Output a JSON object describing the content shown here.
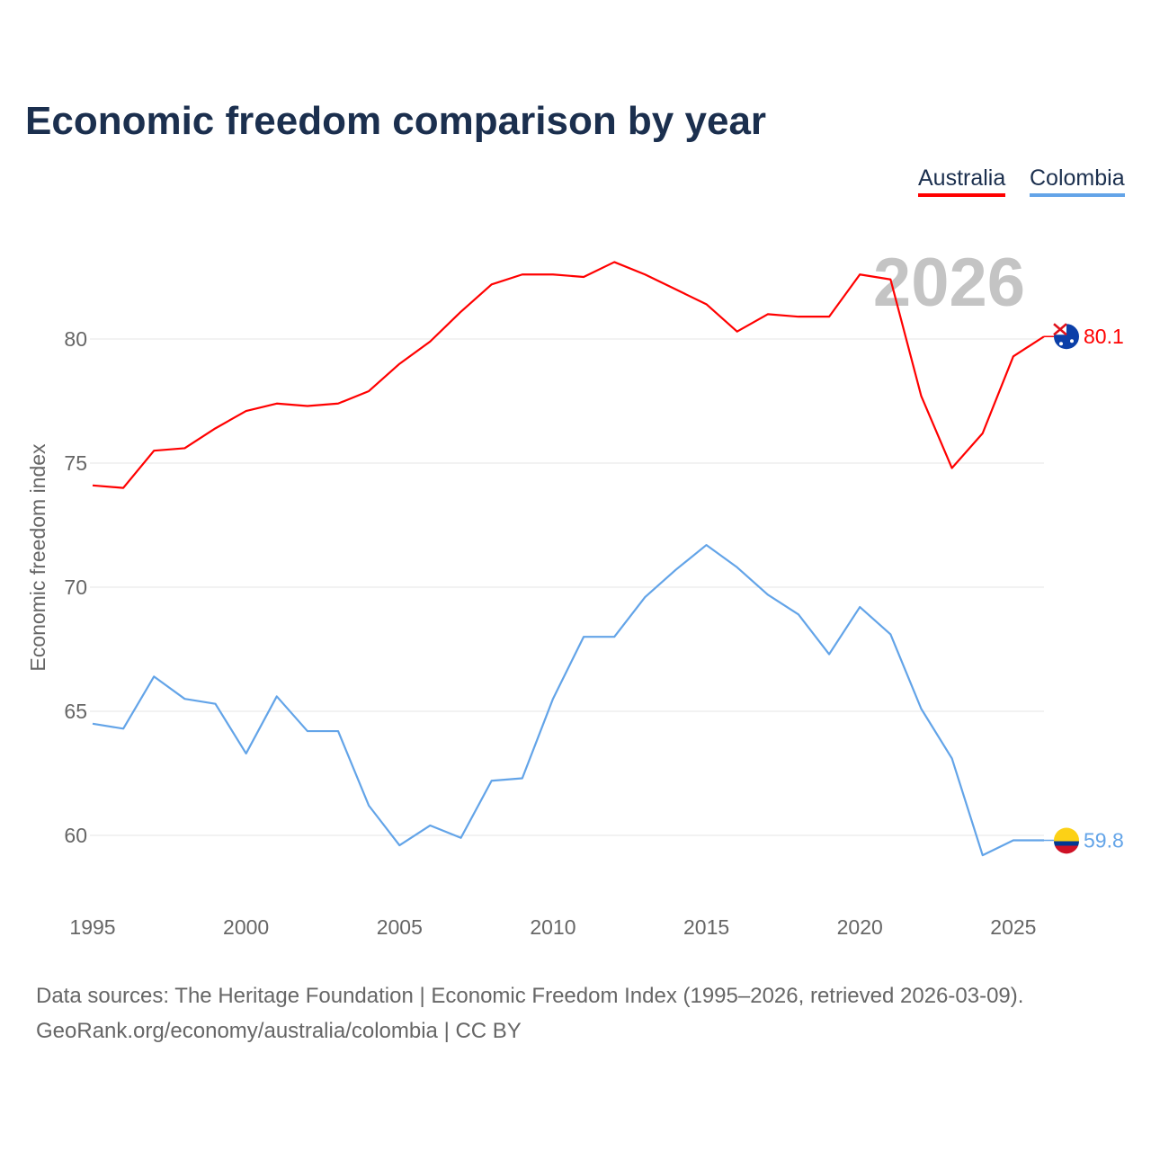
{
  "chart_data": {
    "type": "line",
    "title": "Economic freedom comparison by year",
    "ylabel": "Economic freedom index",
    "xlabel": "",
    "ylim": [
      57,
      84
    ],
    "xlim": [
      1995,
      2026
    ],
    "grid": true,
    "legend_position": "top-right",
    "y_ticks": [
      60,
      65,
      70,
      75,
      80
    ],
    "x_ticks": [
      1995,
      2000,
      2005,
      2010,
      2015,
      2020,
      2025
    ],
    "year_watermark": "2026",
    "x": [
      1995,
      1996,
      1997,
      1998,
      1999,
      2000,
      2001,
      2002,
      2003,
      2004,
      2005,
      2006,
      2007,
      2008,
      2009,
      2010,
      2011,
      2012,
      2013,
      2014,
      2015,
      2016,
      2017,
      2018,
      2019,
      2020,
      2021,
      2022,
      2023,
      2024,
      2025,
      2026
    ],
    "series": [
      {
        "name": "Australia",
        "color": "#ff0000",
        "end_label": "80.1",
        "values": [
          74.1,
          74.0,
          75.5,
          75.6,
          76.4,
          77.1,
          77.4,
          77.3,
          77.4,
          77.9,
          79.0,
          79.9,
          81.1,
          82.2,
          82.6,
          82.6,
          82.5,
          83.1,
          82.6,
          82.0,
          81.4,
          80.3,
          81.0,
          80.9,
          80.9,
          82.6,
          82.4,
          77.7,
          74.8,
          76.2,
          79.3,
          80.1
        ]
      },
      {
        "name": "Colombia",
        "color": "#63a4e8",
        "end_label": "59.8",
        "values": [
          64.5,
          64.3,
          66.4,
          65.5,
          65.3,
          63.3,
          65.6,
          64.2,
          64.2,
          61.2,
          59.6,
          60.4,
          59.9,
          62.2,
          62.3,
          65.5,
          68.0,
          68.0,
          69.6,
          70.7,
          71.7,
          70.8,
          69.7,
          68.9,
          67.3,
          69.2,
          68.1,
          65.1,
          63.1,
          59.2,
          59.8,
          59.8
        ]
      }
    ]
  },
  "source": {
    "line1": "Data sources: The Heritage Foundation | Economic Freedom Index (1995–2026, retrieved 2026-03-09).",
    "line2": "GeoRank.org/economy/australia/colombia | CC BY"
  }
}
